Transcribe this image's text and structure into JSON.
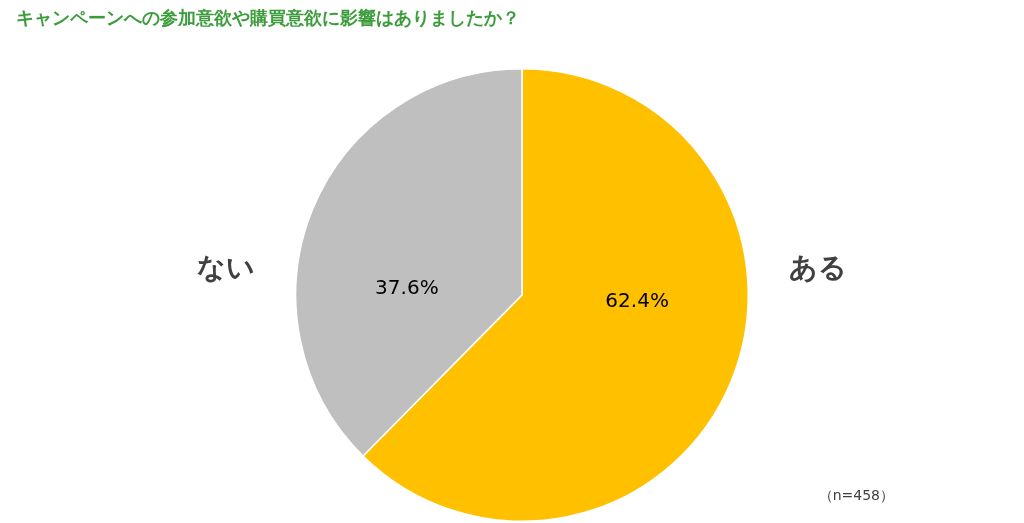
{
  "chart_data": {
    "type": "pie",
    "title": "キャンペーンへの参加意欲や購買意欲に影響はありましたか？",
    "categories": [
      "ある",
      "ない"
    ],
    "values": [
      62.4,
      37.6
    ],
    "colors": [
      "#ffc000",
      "#bfbfbf"
    ],
    "value_labels": [
      "62.4%",
      "37.6%"
    ],
    "annotations": [
      "（n=458）"
    ],
    "legend": false
  }
}
